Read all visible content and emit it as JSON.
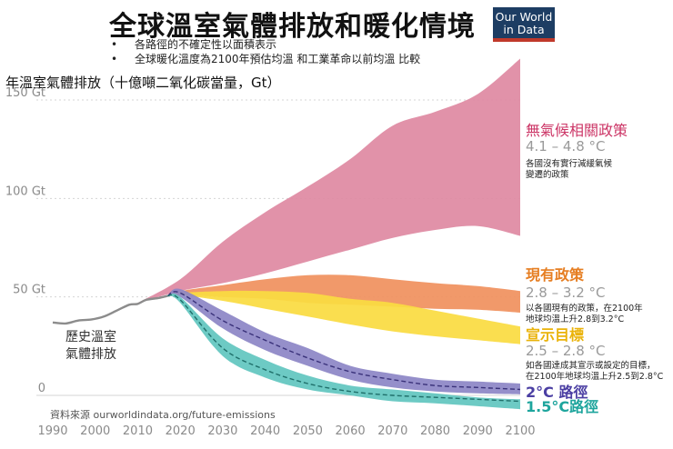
{
  "title": "全球溫室氣體排放和暖化情境",
  "logo": {
    "line1": "Our World",
    "line2": "in Data"
  },
  "bullets": [
    "各路徑的不確定性以面積表示",
    "全球暖化溫度為2100年預估均溫 和工業革命以前均溫 比較"
  ],
  "source": "資料來源 ourworldindata.org/future-emissions",
  "history_label": [
    "歷史溫室",
    "氣體排放"
  ],
  "colors": {
    "no_policy": "#df8aa2",
    "current": "#f0915f",
    "pledges": "#fadb42",
    "two_deg": "#8d86c6",
    "one_five": "#62c6c0",
    "history": "#8c8c8c",
    "no_policy_text": "#cc3566",
    "current_text": "#e67e22",
    "pledges_text": "#eab30a",
    "two_deg_text": "#4b3fa3",
    "one_five_text": "#1ea59d"
  },
  "chart_data": {
    "type": "area",
    "title": "全球溫室氣體排放和暖化情境",
    "ylabel": "年溫室氣體排放（十億噸二氧化碳當量，Gt）",
    "xlabel": "",
    "xlim": [
      1990,
      2100
    ],
    "ylim": [
      0,
      150
    ],
    "x_ticks": [
      "1990",
      "2000",
      "2010",
      "2020",
      "2030",
      "2040",
      "2050",
      "2060",
      "2070",
      "2080",
      "2090",
      "2100"
    ],
    "y_ticks": [
      {
        "value": 0,
        "label": "0"
      },
      {
        "value": 50,
        "label": "50 Gt"
      },
      {
        "value": 100,
        "label": "100 Gt"
      },
      {
        "value": 150,
        "label": "150 Gt"
      }
    ],
    "history": {
      "name": "歷史溫室氣體排放",
      "x": [
        1990,
        1993,
        1996,
        1999,
        2002,
        2005,
        2008,
        2010,
        2012,
        2015,
        2017
      ],
      "values": [
        37,
        36.5,
        38,
        38.5,
        40,
        43,
        46,
        46.5,
        48.5,
        49.5,
        50.5
      ]
    },
    "scenarios": [
      {
        "key": "no_policy",
        "name": "無氣候相關政策",
        "range": "4.1 – 4.8 °C",
        "desc": [
          "各國沒有實行減緩氣候",
          "變遷的政策"
        ],
        "x": [
          2010,
          2020,
          2030,
          2040,
          2050,
          2060,
          2070,
          2080,
          2090,
          2100
        ],
        "upper": [
          47,
          59,
          78,
          93,
          106,
          120,
          137,
          144,
          153,
          171
        ],
        "lower": [
          47,
          53,
          57,
          62,
          68,
          74,
          80,
          84,
          86,
          81
        ]
      },
      {
        "key": "current",
        "name": "現有政策",
        "range": "2.8 – 3.2 °C",
        "desc": [
          "以各國現有的政策，在2100年",
          "地球均溫上升2.8到3.2°C"
        ],
        "x": [
          2017,
          2020,
          2030,
          2040,
          2050,
          2060,
          2070,
          2080,
          2090,
          2100
        ],
        "upper": [
          50.5,
          53,
          56,
          59,
          61,
          61,
          59,
          57,
          55.5,
          53
        ],
        "lower": [
          50.5,
          51,
          50,
          49,
          47,
          46,
          45,
          44,
          43.5,
          42
        ]
      },
      {
        "key": "pledges",
        "name": "宣示目標",
        "range": "2.5 – 2.8 °C",
        "desc": [
          "如各國達成其宣示或設定的目標，",
          "在2100年地球均溫上升2.5到2.8°C"
        ],
        "x": [
          2017,
          2020,
          2030,
          2040,
          2050,
          2060,
          2070,
          2080,
          2090,
          2100
        ],
        "upper": [
          50.5,
          52,
          53,
          53,
          52,
          49,
          47,
          43,
          39,
          35
        ],
        "lower": [
          50.5,
          51,
          48,
          44,
          40,
          36,
          32.5,
          30,
          28,
          26
        ]
      },
      {
        "key": "two_deg",
        "name": "2°C 路徑",
        "range": "",
        "desc": [],
        "x": [
          2017,
          2020,
          2030,
          2040,
          2050,
          2060,
          2070,
          2080,
          2090,
          2100
        ],
        "upper": [
          50.5,
          54,
          43,
          32,
          24,
          15,
          11,
          8,
          7,
          6
        ],
        "lower": [
          50.5,
          50,
          34,
          23,
          15,
          8,
          4,
          2,
          1,
          0.5
        ],
        "central": [
          50.5,
          52,
          38,
          28,
          19,
          12,
          8,
          5,
          4,
          3
        ]
      },
      {
        "key": "one_five",
        "name": "1.5°C路徑",
        "range": "",
        "desc": [],
        "x": [
          2017,
          2020,
          2030,
          2040,
          2050,
          2060,
          2070,
          2080,
          2090,
          2100
        ],
        "upper": [
          50.5,
          50,
          29,
          18,
          10,
          5,
          3,
          1,
          -1,
          -2
        ],
        "lower": [
          50.5,
          47,
          20,
          9,
          3,
          0,
          -3,
          -4,
          -5.5,
          -7
        ],
        "central": [
          50.5,
          48.5,
          24,
          13,
          6,
          2,
          0,
          -1,
          -2,
          -3
        ]
      }
    ]
  }
}
